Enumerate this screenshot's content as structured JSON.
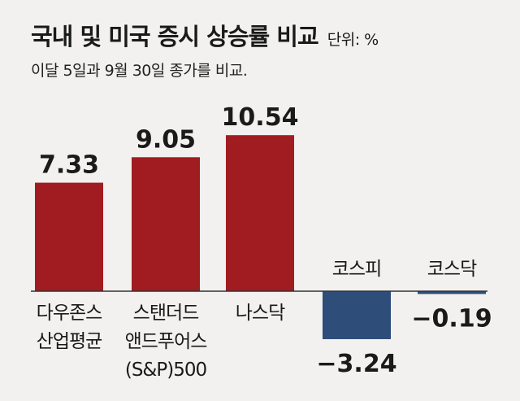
{
  "title": "국내 및 미국 증시 상승률 비교",
  "unit": "단위: %",
  "subtitle": "이달 5일과 9월 30일 종가를 비교.",
  "colors": {
    "positive": "#a01c20",
    "negative": "#2e4d79",
    "axis": "#333333"
  },
  "chart_data": {
    "type": "bar",
    "categories": [
      "다우존스 산업평균",
      "스탠더드앤드푸어스(S&P)500",
      "나스닥",
      "코스피",
      "코스닥"
    ],
    "category_lines": [
      [
        "다우존스",
        "산업평균"
      ],
      [
        "스탠더드",
        "앤드푸어스",
        "(S&P)500"
      ],
      [
        "나스닥"
      ],
      [
        "코스피"
      ],
      [
        "코스닥"
      ]
    ],
    "values": [
      7.33,
      9.05,
      10.54,
      -3.24,
      -0.19
    ],
    "value_labels": [
      "7.33",
      "9.05",
      "10.54",
      "−3.24",
      "−0.19"
    ],
    "title": "국내 및 미국 증시 상승률 비교",
    "xlabel": "",
    "ylabel": "",
    "grid": false
  }
}
